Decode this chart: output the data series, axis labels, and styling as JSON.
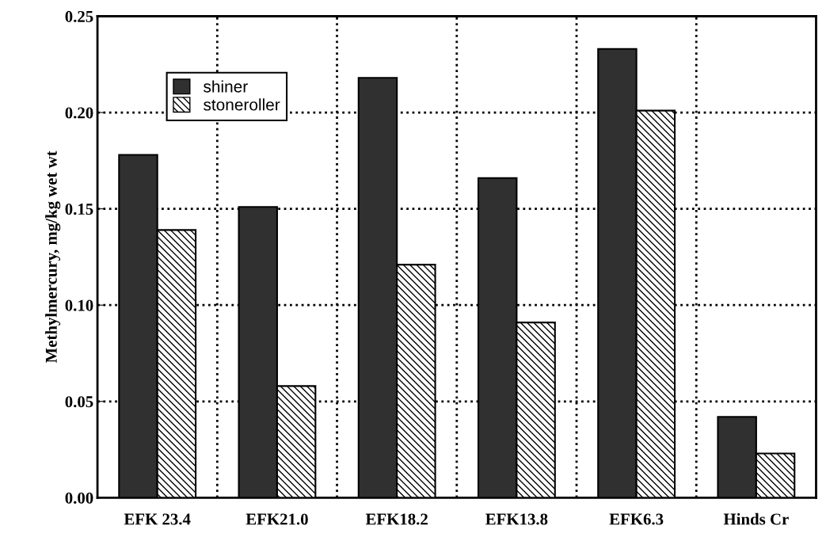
{
  "chart_data": {
    "type": "bar",
    "ylabel": "Methylmercury, mg/kg wet wt",
    "categories": [
      "EFK 23.4",
      "EFK21.0",
      "EFK18.2",
      "EFK13.8",
      "EFK6.3",
      "Hinds Cr"
    ],
    "series": [
      {
        "name": "shiner",
        "color": "#303030",
        "values": [
          0.178,
          0.151,
          0.218,
          0.166,
          0.233,
          0.042
        ]
      },
      {
        "name": "stoneroller",
        "color": "#000000",
        "values": [
          0.139,
          0.058,
          0.121,
          0.091,
          0.201,
          0.023
        ]
      }
    ],
    "ylim": [
      0,
      0.25
    ],
    "yticks": [
      {
        "value": 0,
        "label": "0.00"
      },
      {
        "value": 0.05,
        "label": "0.05"
      },
      {
        "value": 0.1,
        "label": "0.10"
      },
      {
        "value": 0.15,
        "label": "0.15"
      },
      {
        "value": 0.2,
        "label": "0.20"
      },
      {
        "value": 0.25,
        "label": "0.25"
      }
    ],
    "grid": true,
    "legend": "top left"
  }
}
